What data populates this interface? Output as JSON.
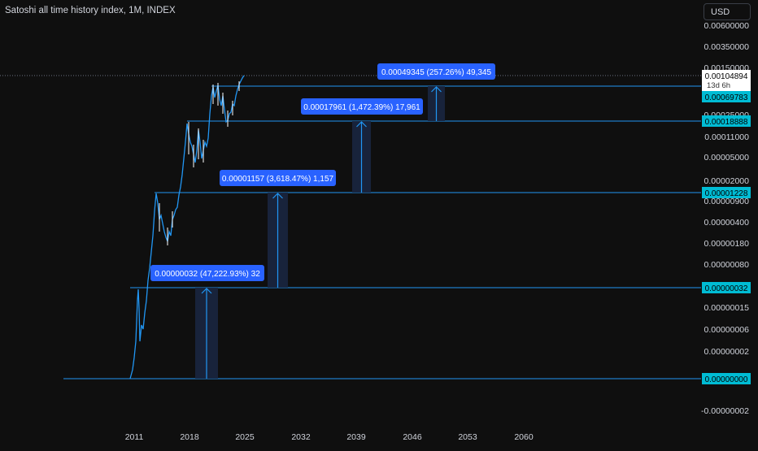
{
  "title": "Satoshi all time history index, 1M, INDEX",
  "currency": "USD",
  "colors": {
    "background": "#0f0f0f",
    "line": "#2196f3",
    "label_bg": "#2962ff",
    "box_fill": "#1a2640",
    "price_tag": "#00bcd4",
    "candle_up": "#ffffff",
    "candle_down": "#7e8696",
    "axis_text": "#d1d4dc"
  },
  "y_axis_labels": [
    "0.00600000",
    "0.00350000",
    "0.00150000",
    "0.00025000",
    "0.00011000",
    "0.00005000",
    "0.00002000",
    "0.00000900",
    "0.00000400",
    "0.00000180",
    "0.00000080",
    "0.00000015",
    "0.00000006",
    "0.00000002",
    "-0.00000002"
  ],
  "x_axis_labels": [
    "2011",
    "2018",
    "2025",
    "2032",
    "2039",
    "2046",
    "2053",
    "2060"
  ],
  "current_price": {
    "value": "0.00104894",
    "countdown": "13d 6h"
  },
  "level_tags": [
    "0.00069783",
    "0.00018888",
    "0.00001228",
    "0.00000032",
    "0.00000000"
  ],
  "measure_labels": [
    "0.00000032 (47,222.93%) 32",
    "0.00001157 (3,618.47%) 1,157",
    "0.00017961 (1,472.39%) 17,961",
    "0.00049345 (257.26%) 49,345"
  ],
  "chart_data": {
    "type": "line",
    "title": "Satoshi all time history index, 1M, INDEX",
    "series": [
      {
        "values": [
          [
            "2010.6",
            0.0
          ],
          [
            "2010.9",
            2e-08
          ],
          [
            "2011.2",
            1.5e-07
          ],
          [
            "2011.5",
            3.2e-07
          ],
          [
            "2011.8",
            6e-08
          ],
          [
            "2012.3",
            1.5e-07
          ],
          [
            "2013.0",
            8e-07
          ],
          [
            "2013.9",
            9e-06
          ],
          [
            "2014.5",
            4e-06
          ],
          [
            "2015.0",
            1.8e-06
          ],
          [
            "2016.0",
            4e-06
          ],
          [
            "2017.0",
            9e-06
          ],
          [
            "2017.9",
            0.00011
          ],
          [
            "2018.9",
            4e-05
          ],
          [
            "2019.5",
            0.00011
          ],
          [
            "2020.2",
            5e-05
          ],
          [
            "2021.3",
            0.0006
          ],
          [
            "2022.0",
            0.0004
          ],
          [
            "2022.9",
            0.00018888
          ],
          [
            "2024.0",
            0.0004
          ],
          [
            "2024.7",
            0.00069783
          ],
          [
            "2025.3",
            0.00104894
          ]
        ]
      }
    ],
    "levels": [
      0.00069783,
      0.00018888,
      1.228e-05,
      3.2e-07,
      0.0
    ],
    "measurements": [
      {
        "from": 0.0,
        "to": 3.2e-07,
        "change_pct": 47222.93,
        "ticks": 32
      },
      {
        "from": 3.2e-07,
        "to": 1.228e-05,
        "change_pct": 3618.47,
        "ticks": 1157
      },
      {
        "from": 1.228e-05,
        "to": 0.00018888,
        "change_pct": 1472.39,
        "ticks": 17961
      },
      {
        "from": 0.00018888,
        "to": 0.00069783,
        "change_pct": 257.26,
        "ticks": 49345
      }
    ],
    "y_scale": "log",
    "grid": false
  }
}
